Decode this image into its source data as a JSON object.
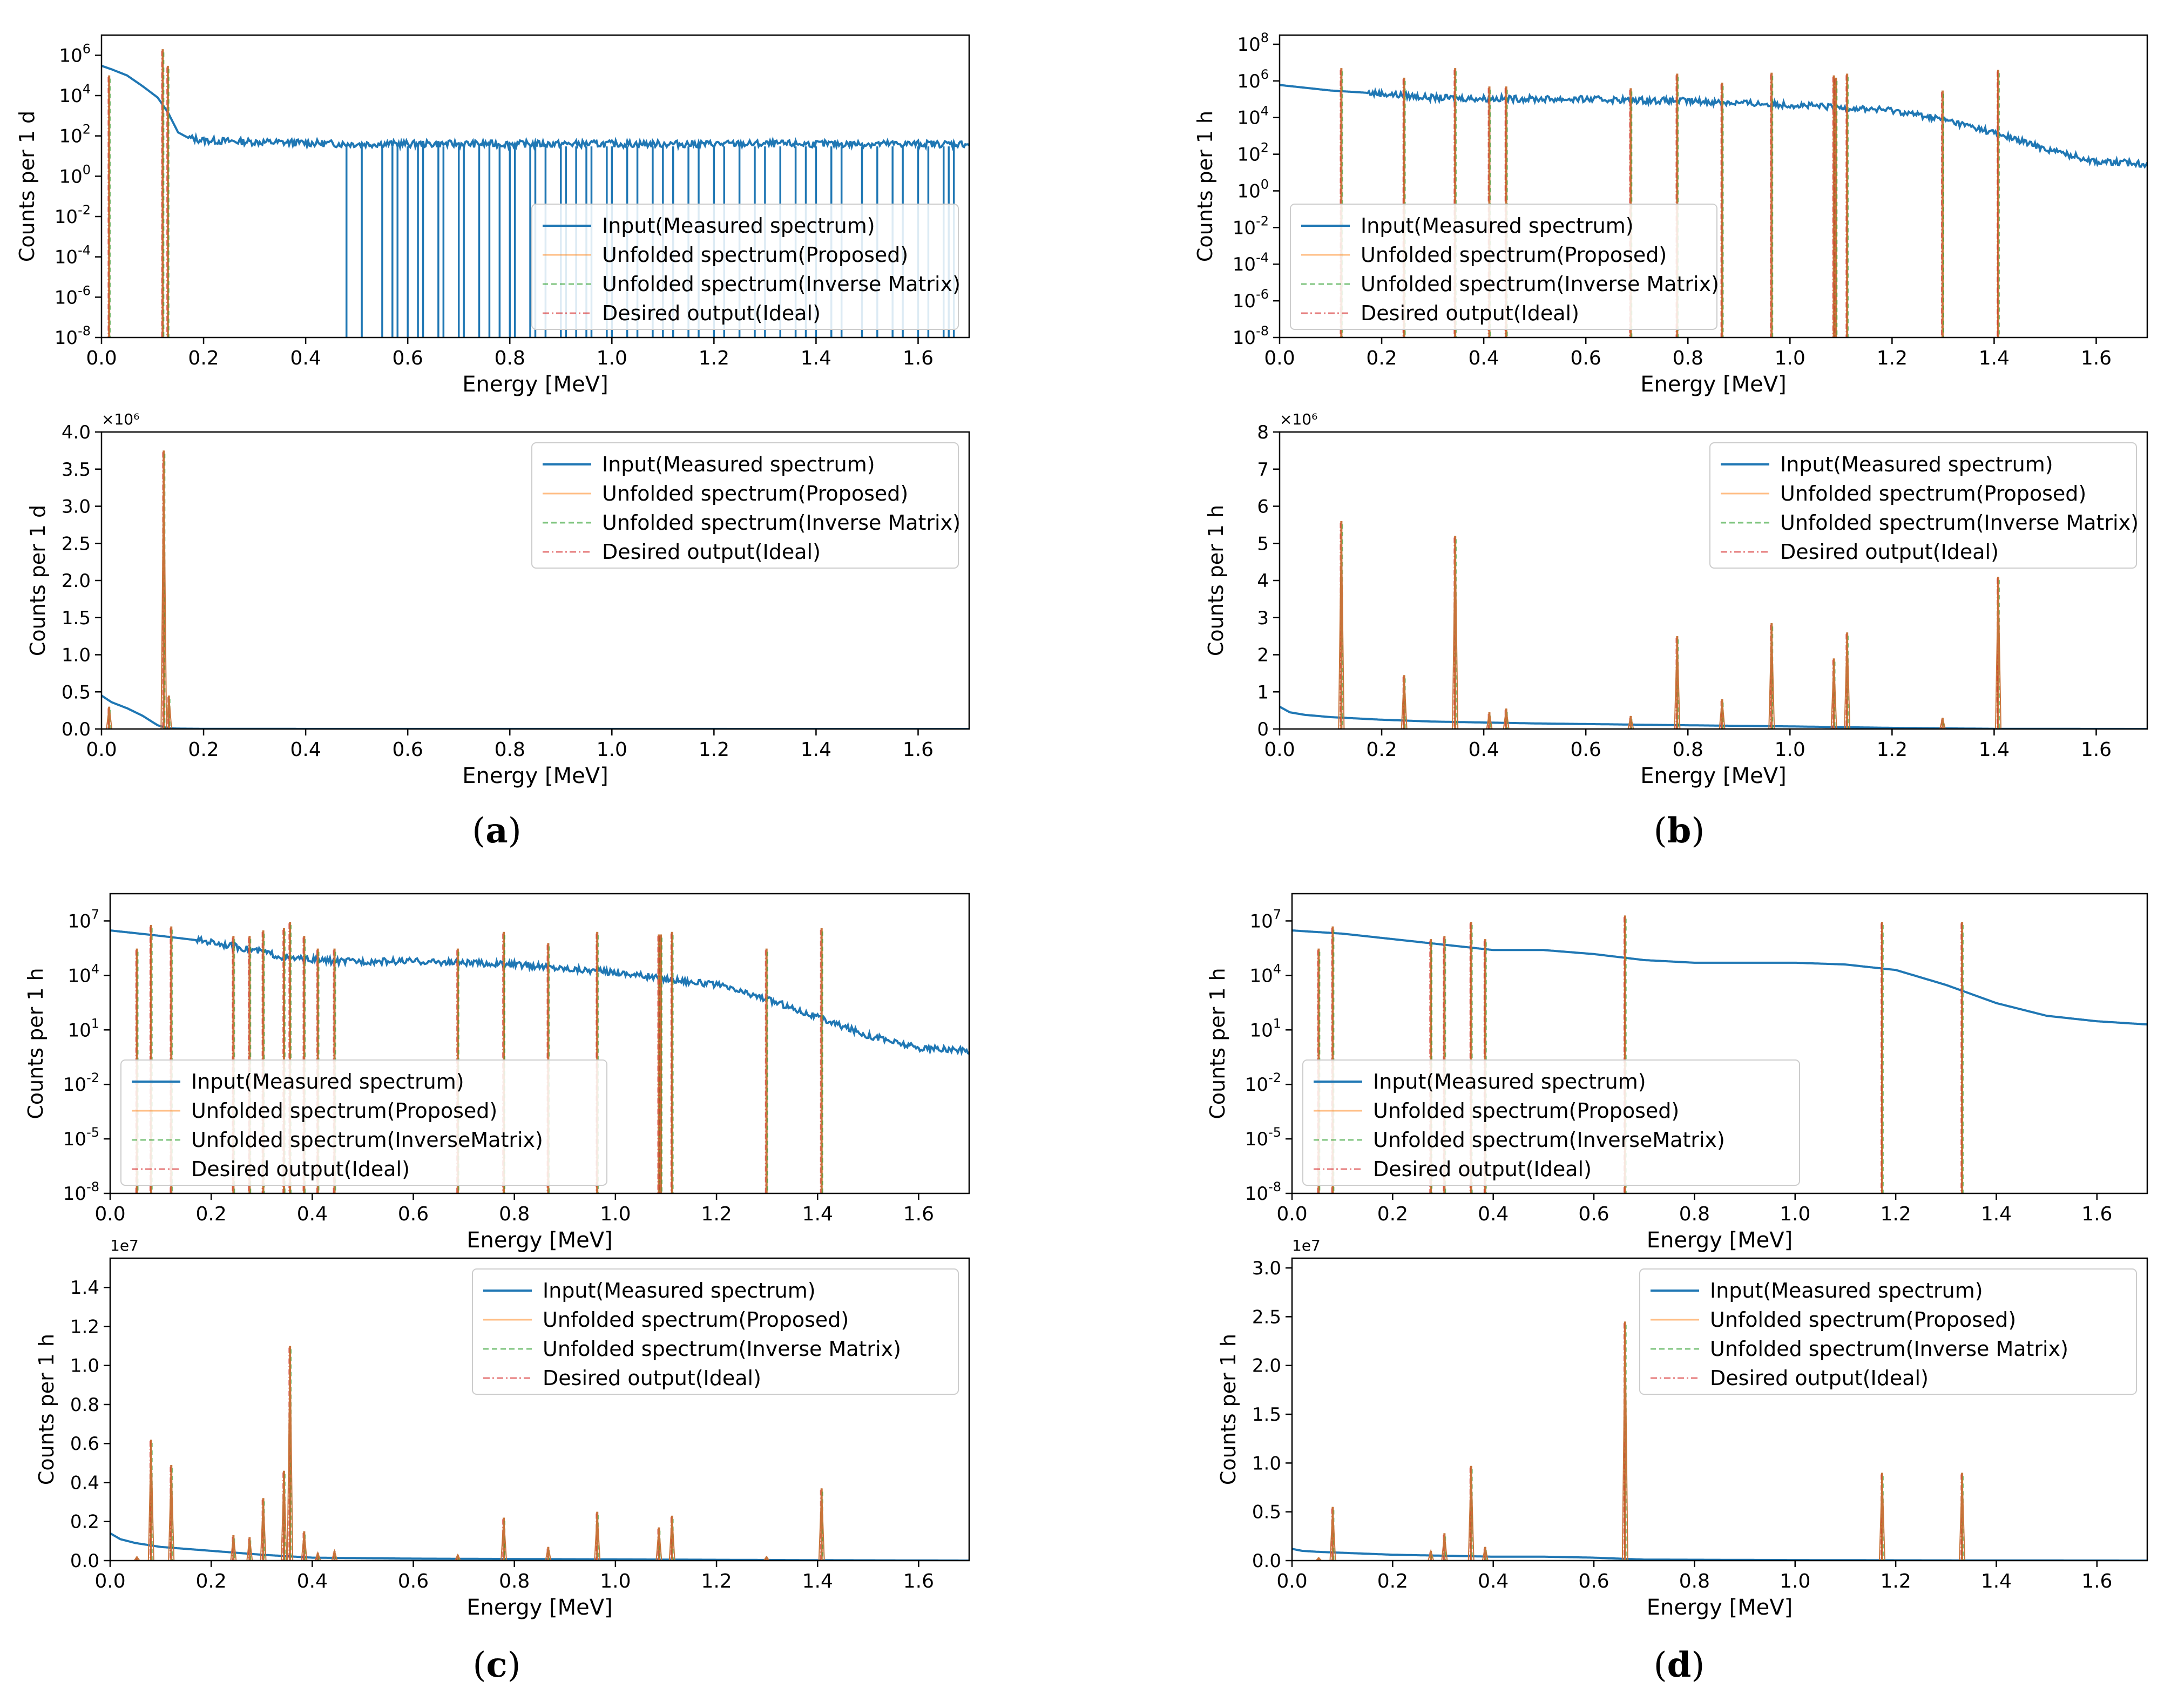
{
  "figure": {
    "panel_labels": [
      {
        "open": "(",
        "letter": "a",
        "close": ")"
      },
      {
        "open": "(",
        "letter": "b",
        "close": ")"
      },
      {
        "open": "(",
        "letter": "c",
        "close": ")"
      },
      {
        "open": "(",
        "letter": "d",
        "close": ")"
      }
    ],
    "colors": {
      "input": "#1f77b4",
      "proposed": "#ff7f0e",
      "inverse": "#2ca02c",
      "ideal": "#d62728",
      "peak": "#c8743a",
      "axis": "#000000"
    }
  },
  "chart_data": [
    {
      "id": "a-top",
      "panel": "a",
      "type": "line",
      "yscale": "log",
      "title": "",
      "xlabel": "Energy [MeV]",
      "ylabel": "Counts per 1 d",
      "xlim": [
        0,
        1.7
      ],
      "ylim_exp": [
        -8,
        7
      ],
      "xticks": [
        "0.0",
        "0.2",
        "0.4",
        "0.6",
        "0.8",
        "1.0",
        "1.2",
        "1.4",
        "1.6"
      ],
      "ytick_exps": [
        6,
        4,
        2,
        0,
        -2,
        -4,
        -6,
        -8
      ],
      "legend": {
        "position": "lower-right",
        "entries": [
          "Input(Measured spectrum)",
          "Unfolded spectrum(Proposed)",
          "Unfolded spectrum(Inverse Matrix)",
          "Desired output(Ideal)"
        ]
      },
      "series": [
        {
          "name": "Input(Measured spectrum)",
          "x": [
            0,
            0.02,
            0.05,
            0.08,
            0.11,
            0.13,
            0.15,
            0.17,
            0.2,
            0.3,
            0.4,
            0.47
          ],
          "values": [
            300000,
            200000,
            100000,
            30000,
            8000,
            1500,
            150,
            80,
            60,
            50,
            45,
            40
          ],
          "noise_to": 1.7
        },
        {
          "name": "Unfolded spectrum(Proposed)",
          "peaks_x": [
            0.015,
            0.12,
            0.13
          ],
          "peaks_y": [
            100000,
            2000000,
            300000
          ]
        }
      ],
      "input_dropouts_x": [
        0.48,
        0.51,
        0.55,
        0.57,
        0.58,
        0.6,
        0.62,
        0.63,
        0.66,
        0.67,
        0.7,
        0.71,
        0.74,
        0.76,
        0.78,
        0.8,
        0.81,
        0.84,
        0.85,
        0.87,
        0.9,
        0.91,
        0.93,
        0.95,
        0.96,
        0.99,
        1.0,
        1.03,
        1.05,
        1.08,
        1.1,
        1.12,
        1.15,
        1.17,
        1.2,
        1.22,
        1.25,
        1.28,
        1.3,
        1.33,
        1.36,
        1.38,
        1.4,
        1.43,
        1.45,
        1.49,
        1.52,
        1.55,
        1.57,
        1.6,
        1.62,
        1.65,
        1.66,
        1.67
      ]
    },
    {
      "id": "a-bot",
      "panel": "a",
      "type": "line",
      "yscale": "linear",
      "title": "",
      "xlabel": "Energy [MeV]",
      "ylabel": "Counts per 1 d",
      "xlim": [
        0,
        1.7
      ],
      "ylim": [
        0,
        4.0
      ],
      "multiplier": "×10⁶",
      "xticks": [
        "0.0",
        "0.2",
        "0.4",
        "0.6",
        "0.8",
        "1.0",
        "1.2",
        "1.4",
        "1.6"
      ],
      "yticks": [
        0,
        0.5,
        1.0,
        1.5,
        2.0,
        2.5,
        3.0,
        3.5,
        4.0
      ],
      "legend": {
        "position": "upper-right",
        "entries": [
          "Input(Measured spectrum)",
          "Unfolded spectrum(Proposed)",
          "Unfolded spectrum(Inverse Matrix)",
          "Desired output(Ideal)"
        ]
      },
      "series": [
        {
          "name": "Input(Measured spectrum)",
          "x": [
            0,
            0.02,
            0.05,
            0.08,
            0.11,
            0.13,
            0.15,
            0.2,
            0.4,
            1.7
          ],
          "values": [
            0.45,
            0.36,
            0.28,
            0.18,
            0.05,
            0.01,
            0.005,
            0.002,
            0.001,
            0
          ]
        },
        {
          "name": "Unfolded spectrum(Proposed)",
          "peaks_x": [
            0.015,
            0.122,
            0.132
          ],
          "peaks_y": [
            0.3,
            3.75,
            0.45
          ]
        }
      ]
    },
    {
      "id": "b-top",
      "panel": "b",
      "type": "line",
      "yscale": "log",
      "title": "",
      "xlabel": "Energy [MeV]",
      "ylabel": "Counts per 1 h",
      "xlim": [
        0,
        1.7
      ],
      "ylim_exp": [
        -8,
        8.5
      ],
      "xticks": [
        "0.0",
        "0.2",
        "0.4",
        "0.6",
        "0.8",
        "1.0",
        "1.2",
        "1.4",
        "1.6"
      ],
      "ytick_exps": [
        8,
        6,
        4,
        2,
        0,
        -2,
        -4,
        -6,
        -8
      ],
      "legend": {
        "position": "lower-left",
        "entries": [
          "Input(Measured spectrum)",
          "Unfolded spectrum(Proposed)",
          "Unfolded spectrum(Inverse Matrix)",
          "Desired output(Ideal)"
        ]
      },
      "series": [
        {
          "name": "Input(Measured spectrum)",
          "x": [
            0,
            0.1,
            0.2,
            0.3,
            0.4,
            0.6,
            0.8,
            1.0,
            1.2,
            1.3,
            1.4,
            1.5,
            1.6,
            1.7
          ],
          "values": [
            600000,
            300000,
            200000,
            120000,
            110000,
            100000,
            80000,
            50000,
            25000,
            8000,
            1500,
            200,
            40,
            30
          ],
          "noise_to": 1.7
        },
        {
          "name": "Unfolded spectrum(Proposed)",
          "peaks_x": [
            0.121,
            0.244,
            0.344,
            0.411,
            0.444,
            0.688,
            0.779,
            0.867,
            0.964,
            1.086,
            1.09,
            1.112,
            1.299,
            1.408
          ],
          "peaks_y": [
            5000000,
            1500000,
            5000000,
            500000,
            500000,
            400000,
            2500000,
            800000,
            2800000,
            2000000,
            1500000,
            2500000,
            300000,
            4000000
          ]
        }
      ]
    },
    {
      "id": "b-bot",
      "panel": "b",
      "type": "line",
      "yscale": "linear",
      "title": "",
      "xlabel": "Energy [MeV]",
      "ylabel": "Counts per 1 h",
      "xlim": [
        0,
        1.7
      ],
      "ylim": [
        0,
        8
      ],
      "multiplier": "×10⁶",
      "xticks": [
        "0.0",
        "0.2",
        "0.4",
        "0.6",
        "0.8",
        "1.0",
        "1.2",
        "1.4",
        "1.6"
      ],
      "yticks": [
        0,
        1,
        2,
        3,
        4,
        5,
        6,
        7,
        8
      ],
      "legend": {
        "position": "upper-right",
        "entries": [
          "Input(Measured spectrum)",
          "Unfolded spectrum(Proposed)",
          "Unfolded spectrum(Inverse Matrix)",
          "Desired output(Ideal)"
        ]
      },
      "series": [
        {
          "name": "Input(Measured spectrum)",
          "x": [
            0,
            0.02,
            0.05,
            0.1,
            0.2,
            0.3,
            0.5,
            0.8,
            1.0,
            1.2,
            1.4,
            1.7
          ],
          "values": [
            0.6,
            0.45,
            0.38,
            0.32,
            0.25,
            0.2,
            0.15,
            0.1,
            0.07,
            0.03,
            0.005,
            0
          ]
        },
        {
          "name": "Unfolded spectrum(Proposed)",
          "peaks_x": [
            0.121,
            0.244,
            0.344,
            0.411,
            0.444,
            0.688,
            0.779,
            0.867,
            0.964,
            1.086,
            1.112,
            1.299,
            1.408
          ],
          "peaks_y": [
            5.6,
            1.45,
            5.2,
            0.45,
            0.55,
            0.35,
            2.5,
            0.8,
            2.85,
            1.9,
            2.6,
            0.3,
            4.1
          ]
        }
      ]
    },
    {
      "id": "c-top",
      "panel": "c",
      "type": "line",
      "yscale": "log",
      "title": "",
      "xlabel": "Energy [MeV]",
      "ylabel": "Counts per 1 h",
      "xlim": [
        0,
        1.7
      ],
      "ylim_exp": [
        -8,
        8.5
      ],
      "xticks": [
        "0.0",
        "0.2",
        "0.4",
        "0.6",
        "0.8",
        "1.0",
        "1.2",
        "1.4",
        "1.6"
      ],
      "ytick_exps": [
        7,
        4,
        1,
        -2,
        -5,
        -8
      ],
      "legend": {
        "position": "lower-left",
        "entries": [
          "Input(Measured spectrum)",
          "Unfolded spectrum(Proposed)",
          "Unfolded spectrum(InverseMatrix)",
          "Desired output(Ideal)"
        ]
      },
      "series": [
        {
          "name": "Input(Measured spectrum)",
          "x": [
            0,
            0.1,
            0.2,
            0.3,
            0.35,
            0.45,
            0.6,
            0.8,
            1.0,
            1.2,
            1.3,
            1.4,
            1.5,
            1.6,
            1.7
          ],
          "values": [
            3000000,
            1500000,
            700000,
            200000,
            90000,
            60000,
            60000,
            40000,
            15000,
            3000,
            500,
            50,
            5,
            1,
            0.7
          ],
          "noise_to": 1.7
        },
        {
          "name": "Unfolded spectrum(Proposed)",
          "peaks_x": [
            0.053,
            0.081,
            0.121,
            0.244,
            0.276,
            0.303,
            0.344,
            0.356,
            0.384,
            0.411,
            0.444,
            0.688,
            0.779,
            0.867,
            0.964,
            1.086,
            1.09,
            1.112,
            1.299,
            1.408
          ],
          "peaks_y": [
            300000,
            6000000,
            5000000,
            1500000,
            1500000,
            3000000,
            4000000,
            9000000,
            1500000,
            300000,
            300000,
            300000,
            2500000,
            600000,
            2500000,
            1800000,
            1800000,
            2500000,
            300000,
            4000000
          ]
        }
      ]
    },
    {
      "id": "c-bot",
      "panel": "c",
      "type": "line",
      "yscale": "linear",
      "title": "",
      "xlabel": "Energy [MeV]",
      "ylabel": "Counts per 1 h",
      "xlim": [
        0,
        1.7
      ],
      "ylim": [
        0,
        1.55
      ],
      "multiplier": "1e7",
      "xticks": [
        "0.0",
        "0.2",
        "0.4",
        "0.6",
        "0.8",
        "1.0",
        "1.2",
        "1.4",
        "1.6"
      ],
      "yticks": [
        0.0,
        0.2,
        0.4,
        0.6,
        0.8,
        1.0,
        1.2,
        1.4
      ],
      "legend": {
        "position": "upper-right",
        "entries": [
          "Input(Measured spectrum)",
          "Unfolded spectrum(Proposed)",
          "Unfolded spectrum(Inverse Matrix)",
          "Desired output(Ideal)"
        ]
      },
      "series": [
        {
          "name": "Input(Measured spectrum)",
          "x": [
            0,
            0.02,
            0.05,
            0.1,
            0.2,
            0.3,
            0.4,
            0.6,
            0.8,
            1.0,
            1.2,
            1.4,
            1.7
          ],
          "values": [
            0.14,
            0.11,
            0.09,
            0.07,
            0.05,
            0.03,
            0.015,
            0.01,
            0.008,
            0.006,
            0.004,
            0.002,
            0
          ]
        },
        {
          "name": "Unfolded spectrum(Proposed)",
          "peaks_x": [
            0.053,
            0.081,
            0.121,
            0.244,
            0.276,
            0.303,
            0.344,
            0.356,
            0.384,
            0.411,
            0.444,
            0.688,
            0.779,
            0.867,
            0.964,
            1.086,
            1.112,
            1.299,
            1.408
          ],
          "peaks_y": [
            0.02,
            0.62,
            0.49,
            0.13,
            0.12,
            0.32,
            0.46,
            1.1,
            0.15,
            0.04,
            0.05,
            0.03,
            0.22,
            0.07,
            0.25,
            0.17,
            0.23,
            0.02,
            0.37
          ]
        }
      ]
    },
    {
      "id": "d-top",
      "panel": "d",
      "type": "line",
      "yscale": "log",
      "title": "",
      "xlabel": "Energy [MeV]",
      "ylabel": "Counts per 1 h",
      "xlim": [
        0,
        1.7
      ],
      "ylim_exp": [
        -8,
        8.5
      ],
      "xticks": [
        "0.0",
        "0.2",
        "0.4",
        "0.6",
        "0.8",
        "1.0",
        "1.2",
        "1.4",
        "1.6"
      ],
      "ytick_exps": [
        7,
        4,
        1,
        -2,
        -5,
        -8
      ],
      "legend": {
        "position": "lower-left",
        "entries": [
          "Input(Measured spectrum)",
          "Unfolded spectrum(Proposed)",
          "Unfolded spectrum(InverseMatrix)",
          "Desired output(Ideal)"
        ]
      },
      "series": [
        {
          "name": "Input(Measured spectrum)",
          "x": [
            0,
            0.1,
            0.2,
            0.3,
            0.4,
            0.5,
            0.6,
            0.7,
            0.8,
            1.0,
            1.1,
            1.2,
            1.3,
            1.4,
            1.5,
            1.6,
            1.7
          ],
          "values": [
            3000000,
            2000000,
            1000000,
            500000,
            250000,
            250000,
            150000,
            70000,
            50000,
            50000,
            40000,
            20000,
            3000,
            300,
            60,
            30,
            20
          ]
        },
        {
          "name": "Unfolded spectrum(Proposed)",
          "peaks_x": [
            0.053,
            0.081,
            0.276,
            0.303,
            0.356,
            0.384,
            0.662,
            1.173,
            1.332
          ],
          "peaks_y": [
            300000,
            5000000,
            1000000,
            1500000,
            9000000,
            1000000,
            20000000,
            9000000,
            9000000
          ]
        }
      ]
    },
    {
      "id": "d-bot",
      "panel": "d",
      "type": "line",
      "yscale": "linear",
      "title": "",
      "xlabel": "Energy [MeV]",
      "ylabel": "Counts per 1 h",
      "xlim": [
        0,
        1.7
      ],
      "ylim": [
        0,
        3.1
      ],
      "multiplier": "1e7",
      "xticks": [
        "0.0",
        "0.2",
        "0.4",
        "0.6",
        "0.8",
        "1.0",
        "1.2",
        "1.4",
        "1.6"
      ],
      "yticks": [
        0.0,
        0.5,
        1.0,
        1.5,
        2.0,
        2.5,
        3.0
      ],
      "legend": {
        "position": "upper-right",
        "entries": [
          "Input(Measured spectrum)",
          "Unfolded spectrum(Proposed)",
          "Unfolded spectrum(Inverse Matrix)",
          "Desired output(Ideal)"
        ]
      },
      "series": [
        {
          "name": "Input(Measured spectrum)",
          "x": [
            0,
            0.02,
            0.05,
            0.1,
            0.2,
            0.3,
            0.4,
            0.5,
            0.6,
            0.7,
            1.0,
            1.3,
            1.7
          ],
          "values": [
            0.12,
            0.1,
            0.09,
            0.08,
            0.06,
            0.05,
            0.04,
            0.04,
            0.03,
            0.01,
            0.005,
            0.002,
            0
          ]
        },
        {
          "name": "Unfolded spectrum(Proposed)",
          "peaks_x": [
            0.053,
            0.081,
            0.276,
            0.303,
            0.356,
            0.384,
            0.662,
            1.173,
            1.332
          ],
          "peaks_y": [
            0.03,
            0.55,
            0.1,
            0.28,
            0.97,
            0.14,
            2.45,
            0.9,
            0.9
          ]
        }
      ]
    }
  ]
}
